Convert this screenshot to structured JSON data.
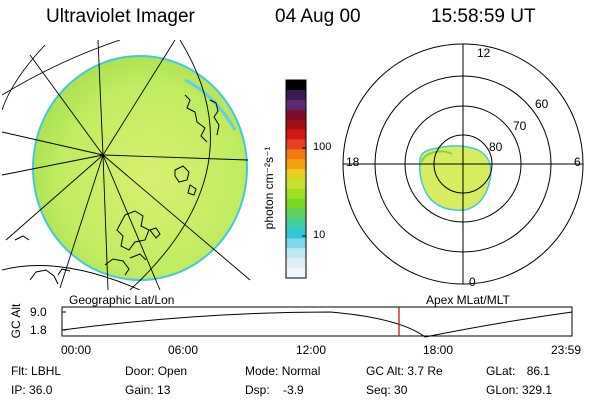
{
  "header": {
    "instrument": "Ultraviolet Imager",
    "date": "04 Aug 00",
    "time": "15:58:59 UT"
  },
  "colorbar": {
    "unit_label": "photon cm⁻²s⁻¹",
    "ticks": [
      "100",
      "10"
    ],
    "colors_top_to_bottom": [
      "#000000",
      "#3a1a55",
      "#5a2a70",
      "#7a1030",
      "#a01010",
      "#d01818",
      "#e84020",
      "#f07a10",
      "#f5a010",
      "#e8d020",
      "#c8e030",
      "#a0e020",
      "#7cd820",
      "#60d060",
      "#40d0a0",
      "#30c8d8",
      "#80d8ee",
      "#c0e8f4",
      "#e0f0f6",
      "#f0f6fa"
    ]
  },
  "left_panel": {
    "caption": "Geographic Lat/Lon",
    "fill_color": "#c8f060",
    "rim_color": "#40c8e0"
  },
  "right_panel": {
    "caption": "Apex MLat/MLT",
    "mlt_labels": {
      "top": "12",
      "left": "18",
      "right": "6",
      "bottom": "0"
    },
    "lat_labels": [
      "60",
      "70",
      "80"
    ]
  },
  "timeline": {
    "ylabel": "GC Alt",
    "yticks": [
      "9.0",
      "1.8"
    ],
    "xticks": [
      "00:00",
      "06:00",
      "12:00",
      "18:00",
      "23:59"
    ],
    "current_time_marker": "15:58:59",
    "marker_color": "#cc0000"
  },
  "info": {
    "row1": [
      {
        "label": "Flt:",
        "value": "LBHL"
      },
      {
        "label": "Door:",
        "value": "Open"
      },
      {
        "label": "Mode:",
        "value": "Normal"
      },
      {
        "label": "GC Alt:",
        "value": "3.7 Re"
      },
      {
        "label": "GLat:",
        "value": "86.1"
      }
    ],
    "row2": [
      {
        "label": "IP:",
        "value": "36.0"
      },
      {
        "label": "Gain:",
        "value": "13"
      },
      {
        "label": "Dsp:",
        "value": "-3.9"
      },
      {
        "label": "Seq:",
        "value": "30"
      },
      {
        "label": "GLon:",
        "value": "329.1"
      }
    ]
  }
}
